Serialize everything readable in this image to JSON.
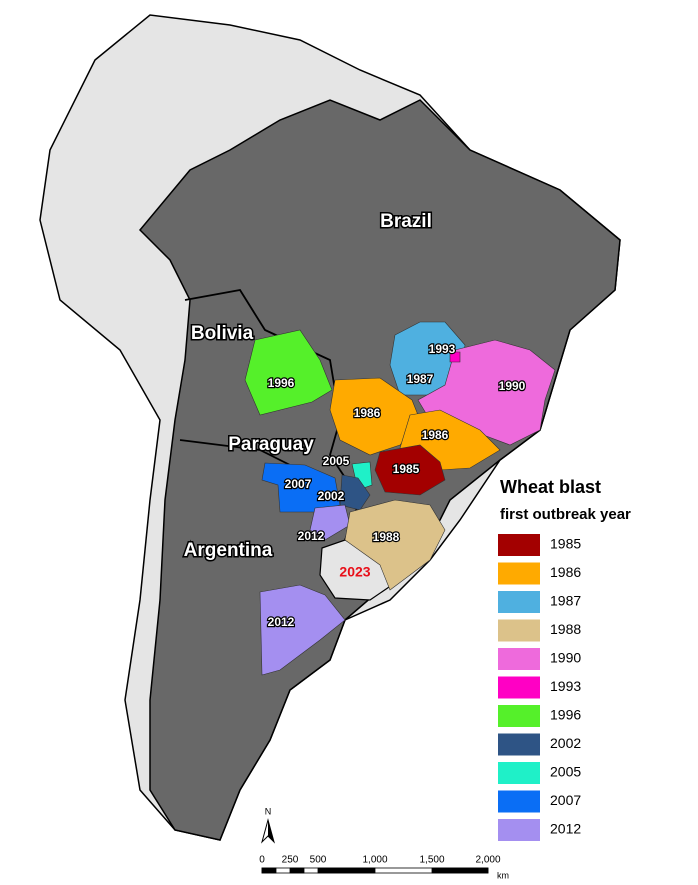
{
  "map": {
    "countries": [
      "Brazil",
      "Bolivia",
      "Paraguay",
      "Argentina"
    ],
    "region_labels": [
      "1993",
      "1987",
      "1990",
      "1996",
      "1986",
      "1986",
      "1985",
      "2005",
      "2007",
      "2002",
      "2012",
      "1988",
      "2023",
      "2012"
    ],
    "legend": {
      "title": "Wheat blast",
      "subtitle": "first outbreak year",
      "items": [
        {
          "label": "1985",
          "color": "#a30000"
        },
        {
          "label": "1986",
          "color": "#ffaa00"
        },
        {
          "label": "1987",
          "color": "#4fb0e0"
        },
        {
          "label": "1988",
          "color": "#dcc28a"
        },
        {
          "label": "1990",
          "color": "#ee6adc"
        },
        {
          "label": "1993",
          "color": "#ff00c4"
        },
        {
          "label": "1996",
          "color": "#55f02a"
        },
        {
          "label": "2002",
          "color": "#2e5485"
        },
        {
          "label": "2005",
          "color": "#1ff0c8"
        },
        {
          "label": "2007",
          "color": "#0a6ef5"
        },
        {
          "label": "2012",
          "color": "#a48ff0"
        }
      ]
    },
    "north": "N",
    "scale": {
      "labels": [
        "0",
        "250",
        "500",
        "1,000",
        "1,500",
        "2,000"
      ],
      "unit": "km"
    }
  }
}
